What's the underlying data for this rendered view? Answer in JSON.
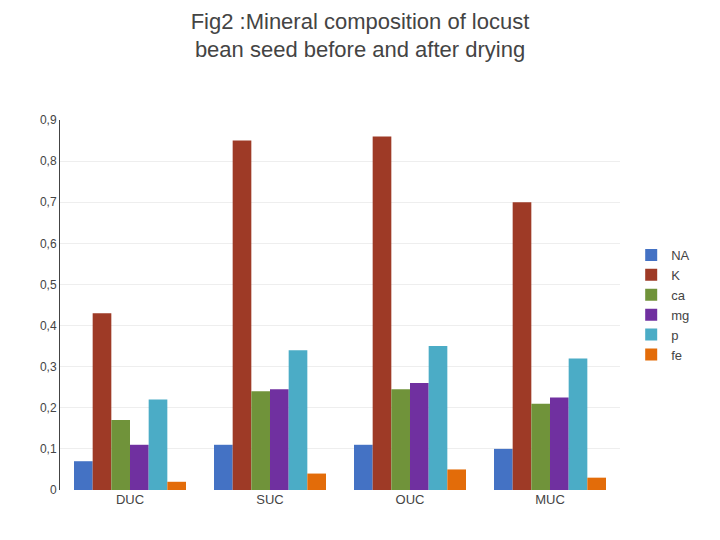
{
  "chart_data": {
    "type": "bar",
    "title": "Fig2 :Mineral composition of locust\nbean seed before and after drying",
    "categories": [
      "DUC",
      "SUC",
      "OUC",
      "MUC"
    ],
    "series": [
      {
        "name": "NA",
        "color": "#4472C4",
        "values": [
          0.07,
          0.11,
          0.11,
          0.1
        ]
      },
      {
        "name": "K",
        "color": "#9E3A26",
        "values": [
          0.43,
          0.85,
          0.86,
          0.7
        ]
      },
      {
        "name": "ca",
        "color": "#70933A",
        "values": [
          0.17,
          0.24,
          0.245,
          0.21
        ]
      },
      {
        "name": "mg",
        "color": "#7030A0",
        "values": [
          0.11,
          0.245,
          0.26,
          0.225
        ]
      },
      {
        "name": "p",
        "color": "#4BACC6",
        "values": [
          0.22,
          0.34,
          0.35,
          0.32
        ]
      },
      {
        "name": "fe",
        "color": "#E36C09",
        "values": [
          0.02,
          0.04,
          0.05,
          0.03
        ]
      }
    ],
    "ylim": [
      0,
      0.9
    ],
    "yticks": [
      0,
      {
        "value": 0.1,
        "label": "0,1"
      },
      {
        "value": 0.2,
        "label": "0,2"
      },
      {
        "value": 0.3,
        "label": "0,3"
      },
      {
        "value": 0.4,
        "label": "0,4"
      },
      {
        "value": 0.5,
        "label": "0,5"
      },
      {
        "value": 0.6,
        "label": "0,6"
      },
      {
        "value": 0.7,
        "label": "0,7"
      },
      {
        "value": 0.8,
        "label": "0,8"
      },
      {
        "value": 0.9,
        "label": "0,9"
      }
    ],
    "grid": true,
    "legend": "right"
  }
}
